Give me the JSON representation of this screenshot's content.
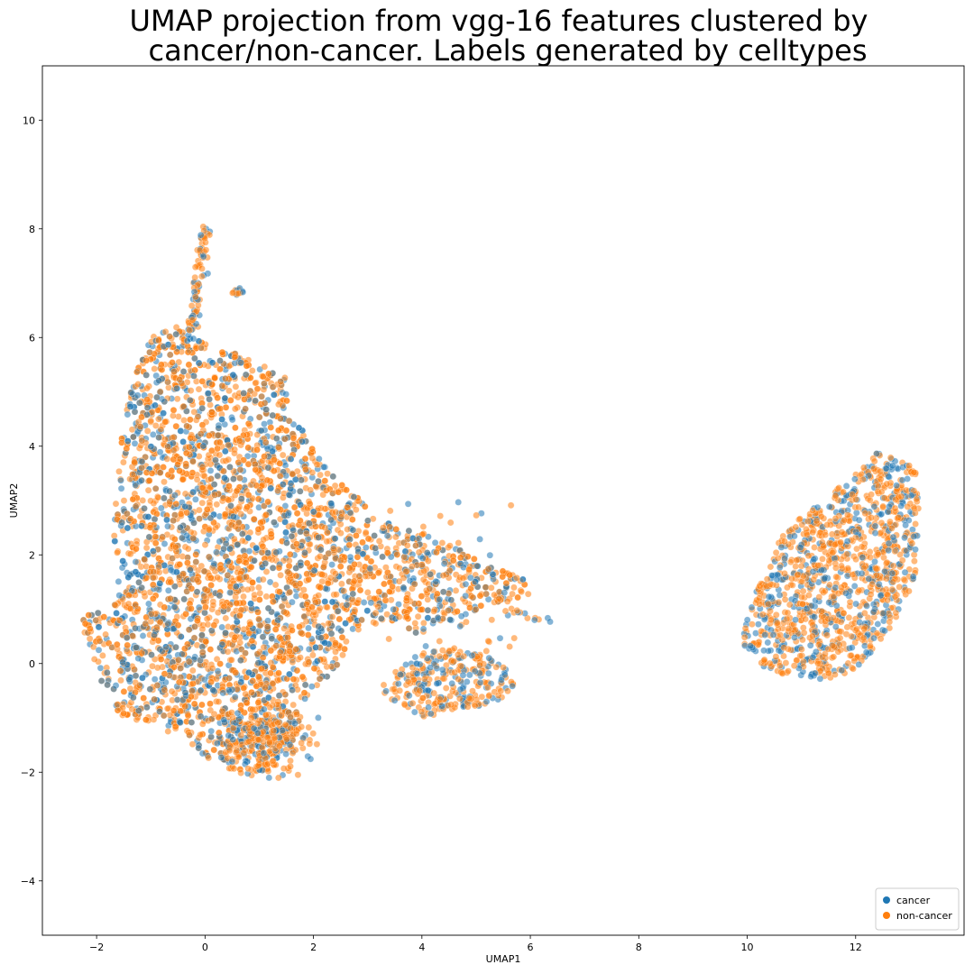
{
  "chart_data": {
    "type": "scatter",
    "title_lines": [
      "UMAP projection from vgg-16 features clustered by",
      "cancer/non-cancer. Labels generated by celltypes"
    ],
    "xlabel": "UMAP1",
    "ylabel": "UMAP2",
    "xlim": [
      -3,
      14
    ],
    "ylim": [
      -5,
      11
    ],
    "xticks": [
      -2,
      0,
      2,
      4,
      6,
      8,
      10,
      12
    ],
    "xtick_labels": [
      "−2",
      "0",
      "2",
      "4",
      "6",
      "8",
      "10",
      "12"
    ],
    "yticks": [
      -4,
      -2,
      0,
      2,
      4,
      6,
      8,
      10
    ],
    "ytick_labels": [
      "−4",
      "−2",
      "0",
      "2",
      "4",
      "6",
      "8",
      "10"
    ],
    "grid": false,
    "legend_position": "bottom-right",
    "point_alpha": 0.55,
    "series": [
      {
        "name": "cancer",
        "color": "#1f77b4"
      },
      {
        "name": "non-cancer",
        "color": "#ff7f0e"
      }
    ],
    "clusters": [
      {
        "region": "left main mass",
        "center": [
          0.4,
          2.2
        ],
        "extent_x": [
          -2.3,
          6.4
        ],
        "extent_y": [
          -2.1,
          8.1
        ]
      },
      {
        "region": "right cluster",
        "center": [
          11.6,
          1.8
        ],
        "extent_x": [
          9.8,
          13.2
        ],
        "extent_y": [
          -0.3,
          3.9
        ]
      }
    ]
  }
}
